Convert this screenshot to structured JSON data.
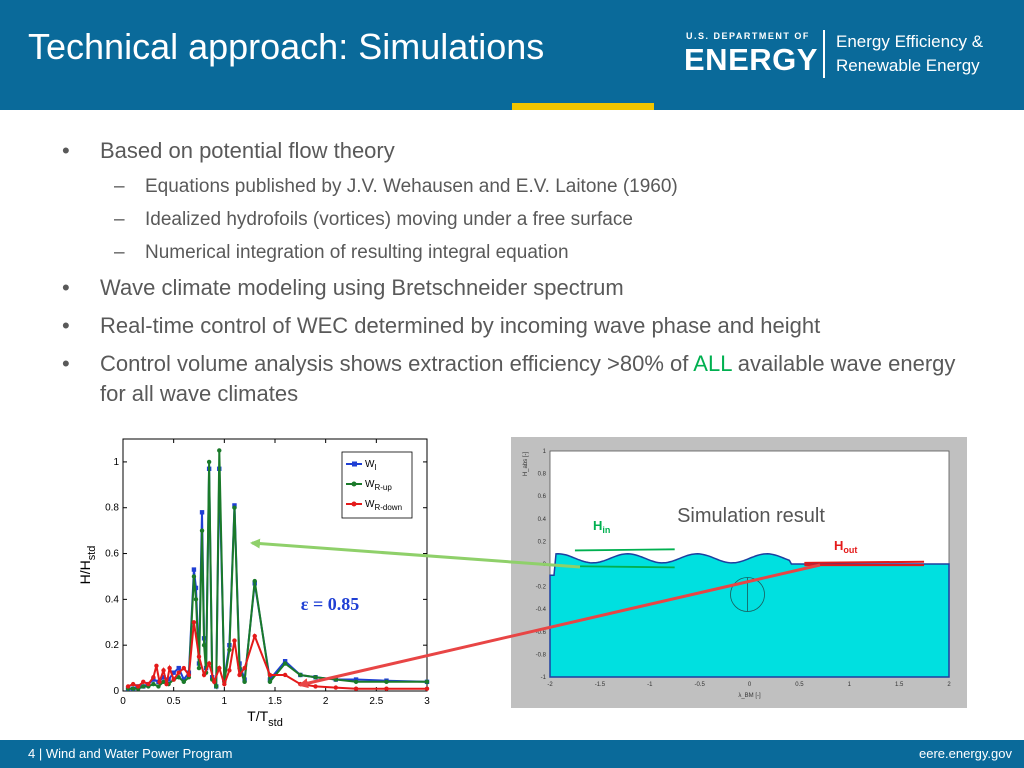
{
  "slide": {
    "title": "Technical approach: Simulations"
  },
  "logo": {
    "doe_small": "U.S. DEPARTMENT OF",
    "doe_big": "ENERGY",
    "eere_line1": "Energy Efficiency &",
    "eere_line2": "Renewable Energy"
  },
  "stripe_colors": [
    "#0a6a9a",
    "#f2c500",
    "#0a6a9a"
  ],
  "bullets": [
    {
      "text": "Based on potential flow theory",
      "subs": [
        "Equations published by J.V. Wehausen and E.V. Laitone (1960)",
        "Idealized hydrofoils (vortices) moving under a free surface",
        "Numerical integration of resulting integral equation"
      ]
    },
    {
      "text": "Wave climate modeling using Bretschneider spectrum"
    },
    {
      "text": "Real-time control of WEC determined by incoming wave phase and height"
    },
    {
      "text_before": "Control volume analysis shows extraction efficiency >80% of ",
      "highlight": "ALL",
      "text_after": " available wave energy for all wave climates"
    }
  ],
  "bullet_glyph": "•",
  "dash_glyph": "–",
  "highlight_color": "#00b050",
  "chart_data": {
    "type": "line",
    "xlabel_main": "T/T",
    "xlabel_sub": "std",
    "ylabel_main": "H/H",
    "ylabel_sub": "std",
    "xlim": [
      0,
      3
    ],
    "ylim": [
      0,
      1.1
    ],
    "xticks": [
      "0",
      "0.5",
      "1",
      "1.5",
      "2",
      "2.5",
      "3"
    ],
    "yticks": [
      "0",
      "0.2",
      "0.4",
      "0.6",
      "0.8",
      "1"
    ],
    "annotation": "ε = 0.85",
    "series": [
      {
        "name_main": "W",
        "name_sub": "I",
        "color": "#1f3fd4",
        "marker": "square",
        "x": [
          0.05,
          0.1,
          0.15,
          0.2,
          0.25,
          0.3,
          0.35,
          0.4,
          0.45,
          0.5,
          0.55,
          0.6,
          0.65,
          0.7,
          0.72,
          0.75,
          0.78,
          0.8,
          0.82,
          0.85,
          0.88,
          0.92,
          0.95,
          1.0,
          1.05,
          1.1,
          1.15,
          1.2,
          1.3,
          1.45,
          1.6,
          1.75,
          1.9,
          2.1,
          2.3,
          2.6,
          3.0
        ],
        "y": [
          0.01,
          0.01,
          0.02,
          0.02,
          0.03,
          0.05,
          0.04,
          0.06,
          0.05,
          0.08,
          0.1,
          0.05,
          0.08,
          0.53,
          0.45,
          0.12,
          0.78,
          0.23,
          0.1,
          0.97,
          0.06,
          0.02,
          0.97,
          0.05,
          0.2,
          0.81,
          0.12,
          0.05,
          0.47,
          0.05,
          0.13,
          0.07,
          0.06,
          0.05,
          0.05,
          0.045,
          0.04
        ]
      },
      {
        "name_main": "W",
        "name_sub": "R-up",
        "color": "#1a7a2a",
        "marker": "circle",
        "x": [
          0.05,
          0.1,
          0.15,
          0.2,
          0.25,
          0.3,
          0.35,
          0.4,
          0.45,
          0.5,
          0.55,
          0.6,
          0.65,
          0.7,
          0.72,
          0.75,
          0.78,
          0.8,
          0.82,
          0.85,
          0.88,
          0.92,
          0.95,
          1.0,
          1.05,
          1.1,
          1.15,
          1.2,
          1.3,
          1.45,
          1.6,
          1.75,
          1.9,
          2.1,
          2.3,
          2.6,
          3.0
        ],
        "y": [
          0.01,
          0.01,
          0.01,
          0.02,
          0.02,
          0.03,
          0.02,
          0.04,
          0.03,
          0.05,
          0.06,
          0.04,
          0.06,
          0.5,
          0.4,
          0.1,
          0.7,
          0.2,
          0.08,
          1.0,
          0.05,
          0.02,
          1.05,
          0.04,
          0.18,
          0.8,
          0.1,
          0.04,
          0.48,
          0.04,
          0.12,
          0.07,
          0.06,
          0.05,
          0.04,
          0.04,
          0.04
        ]
      },
      {
        "name_main": "W",
        "name_sub": "R-down",
        "color": "#e41a1a",
        "marker": "circle",
        "x": [
          0.05,
          0.1,
          0.15,
          0.2,
          0.25,
          0.3,
          0.33,
          0.36,
          0.4,
          0.43,
          0.46,
          0.5,
          0.55,
          0.6,
          0.65,
          0.7,
          0.75,
          0.8,
          0.85,
          0.9,
          0.95,
          1.0,
          1.05,
          1.1,
          1.15,
          1.2,
          1.3,
          1.45,
          1.6,
          1.75,
          1.9,
          2.1,
          2.3,
          2.6,
          3.0
        ],
        "y": [
          0.02,
          0.03,
          0.02,
          0.04,
          0.03,
          0.06,
          0.11,
          0.04,
          0.09,
          0.03,
          0.1,
          0.05,
          0.08,
          0.1,
          0.07,
          0.3,
          0.15,
          0.07,
          0.12,
          0.04,
          0.1,
          0.03,
          0.09,
          0.22,
          0.07,
          0.1,
          0.24,
          0.07,
          0.07,
          0.03,
          0.02,
          0.015,
          0.01,
          0.01,
          0.01
        ]
      }
    ]
  },
  "simulation": {
    "label": "Simulation result",
    "h_in_main": "H",
    "h_in_sub": "in",
    "h_out_main": "H",
    "h_out_sub": "out",
    "x_axis_label": "λ_BM [-]",
    "y_axis_label": "H_abs [-]",
    "xticks": [
      "-2",
      "-1.5",
      "-1",
      "-0.5",
      "0",
      "0.5",
      "1",
      "1.5",
      "2"
    ],
    "yticks": [
      "1",
      "0.8",
      "0.6",
      "0.4",
      "0.2",
      "0",
      "-0.2",
      "-0.4",
      "-0.6",
      "-0.8",
      "-1"
    ],
    "water_color": "#00e0e0",
    "frame_color": "#c0c0c0"
  },
  "footer": {
    "left": "4 | Wind and Water Power Program",
    "right": "eere.energy.gov"
  }
}
